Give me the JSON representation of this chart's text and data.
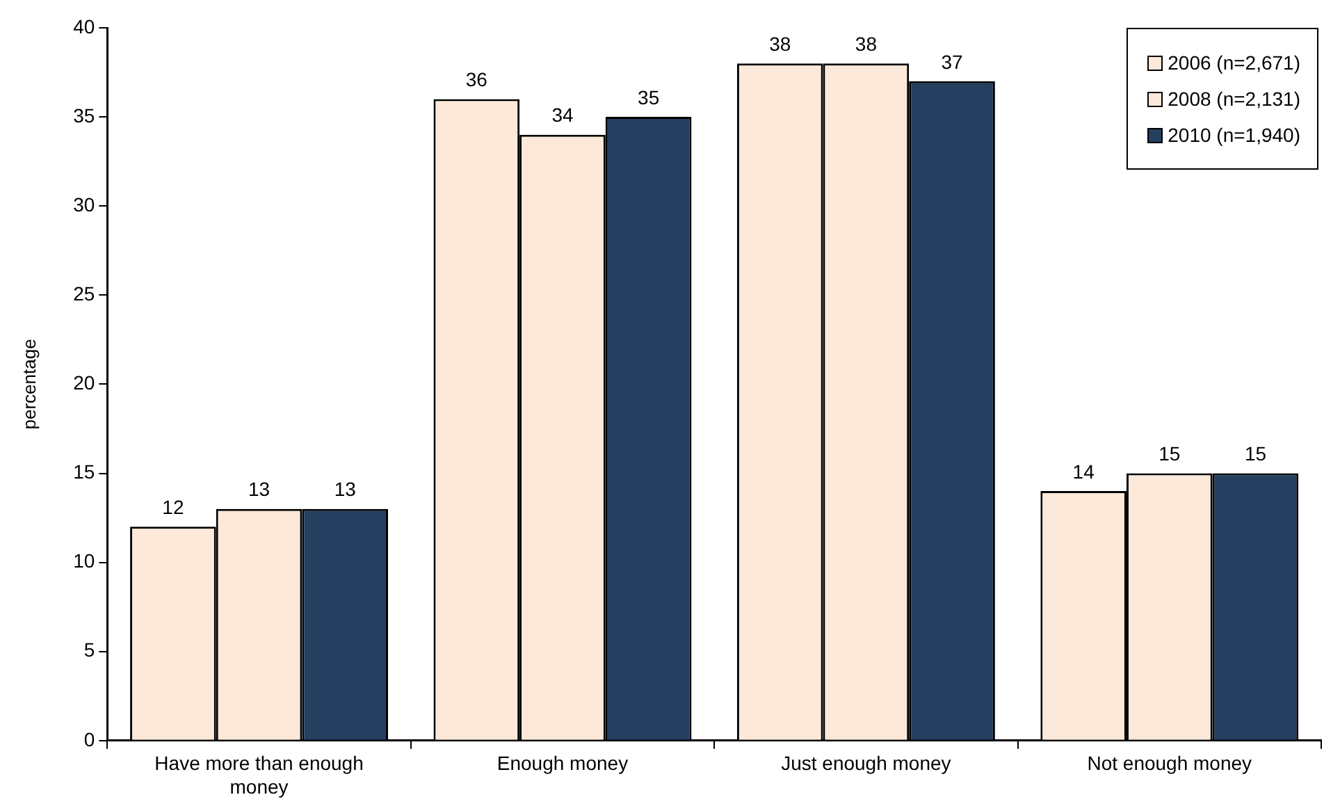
{
  "chart_data": {
    "type": "bar",
    "ylabel": "percentage",
    "categories": [
      "Have more than enough money",
      "Enough money",
      "Just enough money",
      "Not enough money"
    ],
    "series": [
      {
        "name": "2006 (n=2,671)",
        "color": "#fde9d9",
        "values": [
          12,
          36,
          38,
          14
        ]
      },
      {
        "name": "2008 (n=2,131)",
        "color": "#fde9d9",
        "values": [
          13,
          34,
          38,
          15
        ]
      },
      {
        "name": "2010 (n=1,940)",
        "color": "#243f60",
        "values": [
          13,
          35,
          37,
          15
        ]
      }
    ],
    "ylim": [
      0,
      40
    ],
    "yticks": [
      0,
      5,
      10,
      15,
      20,
      25,
      30,
      35,
      40
    ],
    "grid": false,
    "legend": "top right",
    "data_labels": true
  }
}
